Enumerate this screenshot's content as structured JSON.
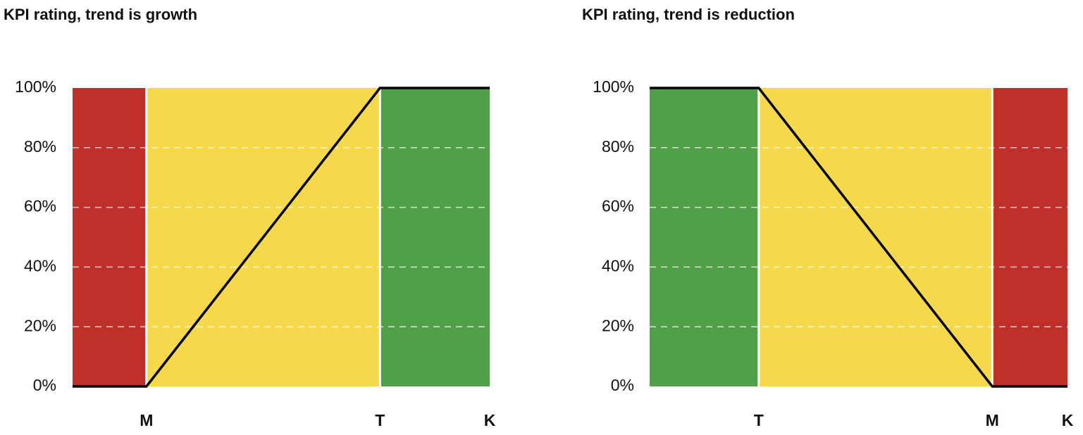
{
  "chart_data": [
    {
      "type": "line",
      "title": "KPI rating, trend is growth",
      "categories": [
        null,
        "M",
        "T",
        "K"
      ],
      "values": [
        0,
        0,
        100,
        100
      ],
      "color": "#000000",
      "zones": [
        {
          "color": "#c0302b"
        },
        {
          "color": "#f6d94b"
        },
        {
          "color": "#50a04a"
        }
      ],
      "ylim": [
        0,
        100
      ],
      "yticks": [
        {
          "value": 0,
          "label": "0%"
        },
        {
          "value": 20,
          "label": "20%"
        },
        {
          "value": 40,
          "label": "40%"
        },
        {
          "value": 60,
          "label": "60%"
        },
        {
          "value": 80,
          "label": "80%"
        },
        {
          "value": 100,
          "label": "100%"
        }
      ],
      "grid": true
    },
    {
      "type": "line",
      "title": "KPI rating, trend is reduction",
      "categories": [
        null,
        "T",
        "M",
        "K"
      ],
      "values": [
        100,
        100,
        0,
        0
      ],
      "color": "#000000",
      "zones": [
        {
          "color": "#50a04a"
        },
        {
          "color": "#f6d94b"
        },
        {
          "color": "#c0302b"
        }
      ],
      "ylim": [
        0,
        100
      ],
      "yticks": [
        {
          "value": 0,
          "label": "0%"
        },
        {
          "value": 20,
          "label": "20%"
        },
        {
          "value": 40,
          "label": "40%"
        },
        {
          "value": 60,
          "label": "60%"
        },
        {
          "value": 80,
          "label": "80%"
        },
        {
          "value": 100,
          "label": "100%"
        }
      ],
      "grid": true
    }
  ]
}
